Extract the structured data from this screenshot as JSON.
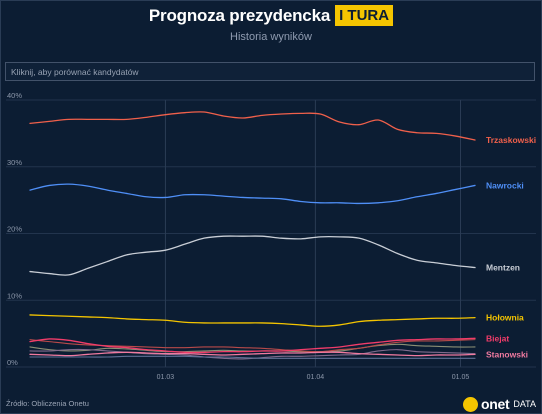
{
  "header": {
    "title": "Prognoza prezydencka",
    "badge": "I TURA",
    "subtitle": "Historia wyników"
  },
  "search": {
    "placeholder": "Kliknij, aby porównać kandydatów"
  },
  "footer": {
    "source": "Źródło: Obliczenia Onetu",
    "logo_text": "onet",
    "logo_suffix": "DATA"
  },
  "colors": {
    "background": "#0c1d33",
    "accent": "#f5c500"
  },
  "chart_data": {
    "type": "line",
    "title": "",
    "xlabel": "",
    "ylabel": "",
    "x": [
      "2025-02-01",
      "2025-02-05",
      "2025-02-09",
      "2025-02-13",
      "2025-02-17",
      "2025-02-21",
      "2025-02-25",
      "2025-03-01",
      "2025-03-05",
      "2025-03-09",
      "2025-03-13",
      "2025-03-17",
      "2025-03-21",
      "2025-03-25",
      "2025-03-29",
      "2025-04-02",
      "2025-04-06",
      "2025-04-10",
      "2025-04-14",
      "2025-04-18",
      "2025-04-22",
      "2025-04-26",
      "2025-04-30",
      "2025-05-04"
    ],
    "xticks": [
      {
        "date": "2025-03-01",
        "label": "01.03"
      },
      {
        "date": "2025-04-01",
        "label": "01.04"
      },
      {
        "date": "2025-05-01",
        "label": "01.05"
      }
    ],
    "ylim": [
      0,
      40
    ],
    "yticks": [
      0,
      10,
      20,
      30,
      40
    ],
    "ytick_suffix": "%",
    "grid": true,
    "series": [
      {
        "name": "Trzaskowski",
        "color": "#f0604b",
        "values": [
          36.5,
          36.8,
          37.1,
          37.1,
          37.1,
          37.1,
          37.4,
          37.8,
          38.1,
          38.2,
          37.6,
          37.3,
          37.7,
          37.9,
          38.0,
          37.9,
          36.7,
          36.3,
          37.0,
          35.6,
          35.1,
          35.0,
          34.6,
          34.0
        ]
      },
      {
        "name": "Nawrocki",
        "color": "#4f8ff7",
        "values": [
          26.5,
          27.2,
          27.4,
          27.1,
          26.5,
          26.0,
          25.5,
          25.4,
          25.8,
          25.8,
          25.6,
          25.4,
          25.3,
          25.2,
          24.8,
          24.6,
          24.6,
          24.5,
          24.6,
          24.9,
          25.5,
          26.0,
          26.6,
          27.2
        ]
      },
      {
        "name": "Mentzen",
        "color": "#c9ced6",
        "values": [
          14.3,
          14.0,
          13.8,
          14.8,
          15.8,
          16.8,
          17.2,
          17.5,
          18.4,
          19.3,
          19.6,
          19.6,
          19.6,
          19.3,
          19.2,
          19.5,
          19.5,
          19.3,
          18.3,
          17.0,
          16.0,
          15.6,
          15.2,
          14.9
        ]
      },
      {
        "name": "Hołownia",
        "color": "#f5c500",
        "values": [
          7.8,
          7.7,
          7.6,
          7.5,
          7.4,
          7.2,
          7.1,
          7.0,
          6.7,
          6.6,
          6.6,
          6.6,
          6.6,
          6.5,
          6.3,
          6.1,
          6.3,
          6.8,
          7.0,
          7.1,
          7.2,
          7.3,
          7.3,
          7.4
        ]
      },
      {
        "name": "Biejat",
        "color": "#f23c6a",
        "values": [
          3.8,
          4.2,
          4.0,
          3.5,
          3.1,
          2.9,
          2.6,
          2.4,
          2.2,
          2.2,
          2.3,
          2.3,
          2.4,
          2.4,
          2.6,
          2.8,
          3.0,
          3.4,
          3.7,
          4.0,
          4.1,
          4.2,
          4.2,
          4.3
        ]
      },
      {
        "name": "Stanowski",
        "color": "#f07aa0",
        "values": [
          1.9,
          1.8,
          1.7,
          1.9,
          2.1,
          2.2,
          2.1,
          2.0,
          2.0,
          1.9,
          1.8,
          1.9,
          2.0,
          2.1,
          2.1,
          2.2,
          2.2,
          2.0,
          1.9,
          1.8,
          1.7,
          1.8,
          1.8,
          1.9
        ]
      },
      {
        "name": "",
        "color": "#8b8f74",
        "values": [
          3.0,
          2.6,
          2.4,
          2.5,
          2.8,
          2.7,
          2.5,
          2.3,
          2.3,
          2.4,
          2.5,
          2.4,
          2.4,
          2.4,
          2.3,
          2.3,
          2.4,
          2.8,
          3.2,
          3.4,
          3.2,
          3.1,
          3.0,
          3.0
        ]
      },
      {
        "name": "",
        "color": "#b84a4a",
        "values": [
          4.1,
          3.8,
          3.5,
          3.3,
          3.2,
          3.1,
          3.0,
          2.9,
          2.9,
          3.0,
          3.0,
          2.9,
          2.8,
          2.6,
          2.4,
          2.3,
          2.6,
          2.8,
          3.3,
          3.7,
          3.9,
          3.9,
          4.0,
          4.1
        ]
      },
      {
        "name": "",
        "color": "#7f6a8c",
        "values": [
          2.4,
          2.4,
          2.6,
          2.6,
          2.4,
          2.2,
          2.0,
          1.9,
          1.8,
          1.5,
          1.3,
          1.2,
          1.4,
          1.6,
          1.6,
          1.7,
          1.8,
          1.9,
          2.4,
          2.6,
          2.3,
          2.2,
          2.1,
          2.0
        ]
      },
      {
        "name": "",
        "color": "#5f6f94",
        "values": [
          1.5,
          1.5,
          1.5,
          1.5,
          1.5,
          1.6,
          1.6,
          1.6,
          1.6,
          1.5,
          1.5,
          1.4,
          1.3,
          1.3,
          1.3,
          1.3,
          1.3,
          1.3,
          1.3,
          1.3,
          1.3,
          1.3,
          1.3,
          1.3
        ]
      }
    ]
  }
}
